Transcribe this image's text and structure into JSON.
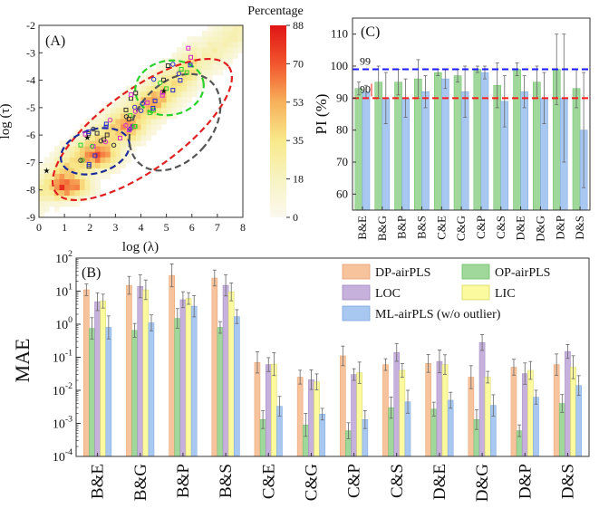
{
  "colors": {
    "dp": "#f7c39d",
    "op": "#9fd89a",
    "loc": "#c6b1dc",
    "lic": "#fbfa9e",
    "ml": "#a8c8f2",
    "pi_green": "#9fd89a",
    "pi_blue": "#a8c8f2",
    "ref99": "#1a1aff",
    "ref90": "#ff1a1a"
  },
  "chart_data": [
    {
      "id": "A",
      "type": "heatmap",
      "panel_label": "(A)",
      "xlabel": "log (λ)",
      "ylabel": "log (τ)",
      "xlim": [
        0,
        8
      ],
      "ylim": [
        -9,
        -2
      ],
      "xticks": [
        "0",
        "1",
        "2",
        "3",
        "4",
        "5",
        "6",
        "7",
        "8"
      ],
      "yticks": [
        "-9",
        "-8",
        "-7",
        "-6",
        "-5",
        "-4",
        "-3",
        "-2"
      ],
      "colorbar": {
        "title": "Percentage",
        "min": 0,
        "max": 88,
        "ticks": [
          "0",
          "18",
          "35",
          "53",
          "70",
          "88"
        ]
      },
      "ellipses": [
        {
          "color": "red",
          "style": "dashed"
        },
        {
          "color": "blue",
          "style": "dashed"
        },
        {
          "color": "green",
          "style": "dashed"
        },
        {
          "color": "gray",
          "style": "dashed"
        }
      ]
    },
    {
      "id": "C",
      "type": "bar",
      "panel_label": "(C)",
      "ylabel": "PI (%)",
      "ylim": [
        55,
        115
      ],
      "yticks": [
        "60",
        "70",
        "80",
        "90",
        "100",
        "110"
      ],
      "categories": [
        "B&E",
        "B&G",
        "B&P",
        "B&S",
        "C&E",
        "C&G",
        "C&P",
        "C&S",
        "D&E",
        "D&G",
        "D&P",
        "D&S"
      ],
      "reference_lines": [
        {
          "value": 99,
          "label": "99"
        },
        {
          "value": 90,
          "label": "90"
        }
      ],
      "series": [
        {
          "name": "green",
          "values": [
            93,
            95,
            95,
            96,
            98,
            97,
            99,
            94,
            99,
            95,
            99,
            93
          ],
          "errors": [
            2,
            5,
            4,
            6,
            1,
            2,
            1,
            7,
            2,
            5,
            11,
            6
          ]
        },
        {
          "name": "blue",
          "values": [
            92,
            90,
            90,
            92,
            96,
            92,
            98,
            89,
            92,
            90,
            90,
            80
          ],
          "errors": [
            2,
            8,
            6,
            5,
            3,
            8,
            2,
            8,
            5,
            8,
            20,
            18
          ]
        }
      ]
    },
    {
      "id": "B",
      "type": "bar",
      "panel_label": "(B)",
      "ylabel": "MAE",
      "yscale": "log",
      "ylim": [
        0.0001,
        100
      ],
      "yticks": [
        "10-4",
        "10-3",
        "10-2",
        "10-1",
        "100",
        "101",
        "102"
      ],
      "categories": [
        "B&E",
        "B&G",
        "B&P",
        "B&S",
        "C&E",
        "C&G",
        "C&P",
        "C&S",
        "D&E",
        "D&G",
        "D&P",
        "D&S"
      ],
      "legend": {
        "position": "top-right"
      },
      "series": [
        {
          "name": "DP-airPLS",
          "values": [
            11,
            15,
            30,
            25,
            0.07,
            0.025,
            0.11,
            0.06,
            0.065,
            0.025,
            0.05,
            0.06
          ]
        },
        {
          "name": "OP-airPLS",
          "values": [
            0.75,
            0.65,
            1.5,
            0.8,
            0.0013,
            0.0009,
            0.0006,
            0.003,
            0.0027,
            0.0013,
            0.0006,
            0.004
          ]
        },
        {
          "name": "LOC",
          "values": [
            4.8,
            14,
            5.5,
            15,
            0.06,
            0.021,
            0.03,
            0.14,
            0.075,
            0.28,
            0.032,
            0.15
          ]
        },
        {
          "name": "LIC",
          "values": [
            5,
            11,
            6,
            9.5,
            0.062,
            0.018,
            0.034,
            0.04,
            0.06,
            0.025,
            0.04,
            0.05
          ]
        },
        {
          "name": "ML-airPLS (w/o outlier)",
          "values": [
            0.8,
            1.1,
            3.5,
            1.7,
            0.0033,
            0.0019,
            0.0013,
            0.0045,
            0.005,
            0.0035,
            0.0062,
            0.014
          ]
        }
      ]
    }
  ]
}
